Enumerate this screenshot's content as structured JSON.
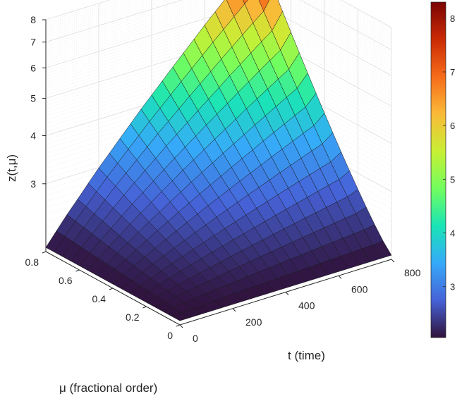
{
  "chart_data": {
    "type": "surface3d",
    "title": "",
    "xlabel": "t (time)",
    "ylabel": "μ (fractional order)",
    "zlabel": "z(t,μ)",
    "x_ticks": [
      "0",
      "200",
      "400",
      "600",
      "800"
    ],
    "y_ticks": [
      "0",
      "0.2",
      "0.4",
      "0.6",
      "0.8"
    ],
    "z_ticks": [
      "3",
      "4",
      "5",
      "6",
      "7",
      "8"
    ],
    "xlim": [
      0,
      800
    ],
    "ylim": [
      0,
      0.8
    ],
    "zlim": [
      2,
      8
    ],
    "z_scale": "log",
    "grid": true,
    "colormap": "turbo",
    "colorbar": {
      "ticks": [
        "3",
        "4",
        "5",
        "6",
        "7",
        "8"
      ],
      "range": [
        2.05,
        8.3
      ],
      "colors": [
        "#30123b",
        "#4662d7",
        "#36aaf9",
        "#1ae4b6",
        "#72fe5e",
        "#c8ef34",
        "#faba39",
        "#f66b19",
        "#ca2a04",
        "#7a0403"
      ]
    },
    "surface": {
      "t": [
        0,
        40,
        80,
        120,
        160,
        200,
        240,
        280,
        320,
        360,
        400,
        440,
        480,
        520,
        560,
        600,
        640,
        680,
        720,
        760,
        800
      ],
      "mu": [
        0,
        0.05,
        0.1,
        0.15,
        0.2,
        0.25,
        0.3,
        0.35,
        0.4,
        0.45,
        0.5,
        0.55,
        0.6,
        0.65,
        0.7,
        0.75,
        0.8
      ],
      "z_min": 2.05,
      "z_max_at_t800_mu08": 8.3,
      "z_at_mu08": [
        2.05,
        2.22,
        2.4,
        2.58,
        2.78,
        2.99,
        3.2,
        3.43,
        3.67,
        3.93,
        4.19,
        4.47,
        4.77,
        5.08,
        5.41,
        5.77,
        6.13,
        6.52,
        6.93,
        7.35,
        8.3
      ]
    }
  }
}
